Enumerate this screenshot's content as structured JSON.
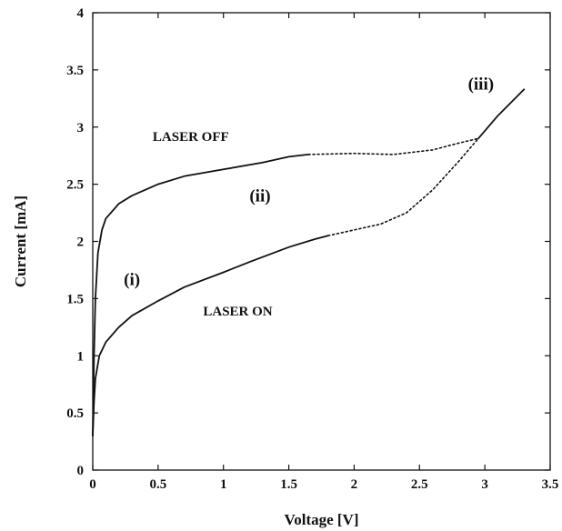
{
  "chart_data": {
    "type": "line",
    "xlabel": "Voltage [V]",
    "ylabel": "Current [mA]",
    "xlim": [
      0,
      3.5
    ],
    "ylim": [
      0,
      4
    ],
    "xticks": [
      0,
      0.5,
      1,
      1.5,
      2,
      2.5,
      3,
      3.5
    ],
    "yticks": [
      0,
      0.5,
      1,
      1.5,
      2,
      2.5,
      3,
      3.5,
      4
    ],
    "xtick_labels": [
      "0",
      "0.5",
      "1",
      "1.5",
      "2",
      "2.5",
      "3",
      "3.5"
    ],
    "ytick_labels": [
      "0",
      "0.5",
      "1",
      "1.5",
      "2",
      "2.5",
      "3",
      "3.5",
      "4"
    ],
    "grid": false,
    "series": [
      {
        "name": "LASER OFF",
        "segments": [
          {
            "style": "solid",
            "points": [
              [
                0.0,
                0.3
              ],
              [
                0.01,
                1.0
              ],
              [
                0.02,
                1.5
              ],
              [
                0.04,
                1.9
              ],
              [
                0.07,
                2.1
              ],
              [
                0.1,
                2.2
              ],
              [
                0.2,
                2.33
              ],
              [
                0.3,
                2.4
              ],
              [
                0.5,
                2.5
              ],
              [
                0.7,
                2.57
              ],
              [
                1.0,
                2.63
              ],
              [
                1.3,
                2.69
              ],
              [
                1.5,
                2.74
              ],
              [
                1.65,
                2.76
              ]
            ]
          },
          {
            "style": "dotted",
            "points": [
              [
                1.65,
                2.76
              ],
              [
                2.0,
                2.77
              ],
              [
                2.3,
                2.76
              ],
              [
                2.6,
                2.8
              ],
              [
                2.8,
                2.86
              ],
              [
                2.95,
                2.9
              ]
            ]
          }
        ]
      },
      {
        "name": "LASER ON",
        "segments": [
          {
            "style": "solid",
            "points": [
              [
                0.0,
                0.3
              ],
              [
                0.01,
                0.6
              ],
              [
                0.02,
                0.8
              ],
              [
                0.05,
                1.0
              ],
              [
                0.1,
                1.12
              ],
              [
                0.2,
                1.25
              ],
              [
                0.3,
                1.35
              ],
              [
                0.5,
                1.48
              ],
              [
                0.7,
                1.6
              ],
              [
                1.0,
                1.73
              ],
              [
                1.2,
                1.82
              ],
              [
                1.5,
                1.95
              ],
              [
                1.7,
                2.02
              ],
              [
                1.8,
                2.05
              ]
            ]
          },
          {
            "style": "dotted",
            "points": [
              [
                1.8,
                2.05
              ],
              [
                2.0,
                2.1
              ],
              [
                2.2,
                2.15
              ],
              [
                2.4,
                2.25
              ],
              [
                2.6,
                2.45
              ],
              [
                2.8,
                2.7
              ],
              [
                2.95,
                2.9
              ]
            ]
          }
        ]
      },
      {
        "name": "",
        "segments": [
          {
            "style": "solid",
            "points": [
              [
                2.95,
                2.9
              ],
              [
                3.1,
                3.1
              ],
              [
                3.3,
                3.33
              ]
            ]
          }
        ]
      }
    ],
    "annotations": [
      {
        "text": "LASER OFF",
        "x": 0.75,
        "y": 2.88,
        "size": 15
      },
      {
        "text": "LASER ON",
        "x": 1.11,
        "y": 1.35,
        "size": 15
      },
      {
        "text": "(i)",
        "x": 0.3,
        "y": 1.62,
        "size": 19
      },
      {
        "text": "(ii)",
        "x": 1.28,
        "y": 2.35,
        "size": 19
      },
      {
        "text": "(iii)",
        "x": 2.97,
        "y": 3.33,
        "size": 19
      }
    ]
  }
}
